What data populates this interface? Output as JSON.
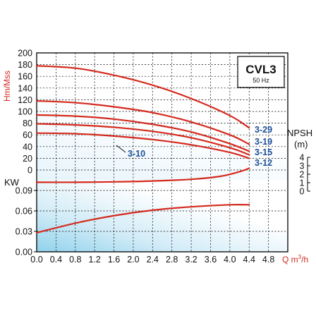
{
  "chart_data": {
    "type": "line",
    "model": "CVL3",
    "frequency": "50 Hz",
    "x_axis": {
      "label": "Q m³/h",
      "label_main": "Q m",
      "label_sup": "3",
      "label_tail": "/h",
      "range": [
        0,
        5.2
      ],
      "ticks": [
        "0.0",
        "0.4",
        "0.8",
        "1.2",
        "1.6",
        "2.0",
        "2.4",
        "2.8",
        "3.2",
        "3.6",
        "4.0",
        "4.4",
        "4.8"
      ]
    },
    "head_axis": {
      "label": "Hm/Mss",
      "range": [
        0,
        200
      ],
      "ticks": [
        "200",
        "180",
        "160",
        "140",
        "120",
        "100",
        "80",
        "60",
        "40",
        "20",
        "0"
      ]
    },
    "power_axis": {
      "label": "KW",
      "range": [
        0,
        0.09
      ],
      "ticks": [
        "0.09",
        "0.06",
        "0.03",
        "0.00"
      ]
    },
    "npsh_axis": {
      "label": "NPSH",
      "unit": "(m)",
      "range": [
        0,
        4
      ],
      "ticks": [
        "4",
        "3",
        "2",
        "1",
        "0"
      ]
    },
    "head_series": [
      {
        "name": "3-29",
        "x": [
          0,
          0.8,
          1.6,
          2.4,
          3.2,
          4.0,
          4.4
        ],
        "y": [
          178,
          174,
          162,
          145,
          122,
          93,
          72
        ]
      },
      {
        "name": "3-19",
        "x": [
          0,
          0.8,
          1.6,
          2.4,
          3.2,
          4.0,
          4.4
        ],
        "y": [
          118,
          115,
          108,
          98,
          82,
          60,
          44
        ]
      },
      {
        "name": "3-15",
        "x": [
          0,
          0.8,
          1.6,
          2.4,
          3.2,
          4.0,
          4.4
        ],
        "y": [
          94,
          92,
          87,
          78,
          65,
          45,
          32
        ]
      },
      {
        "name": "3-12",
        "x": [
          0,
          0.8,
          1.6,
          2.4,
          3.2,
          4.0,
          4.4
        ],
        "y": [
          79,
          77,
          73,
          66,
          55,
          38,
          26
        ]
      },
      {
        "name": "3-10",
        "x": [
          0,
          0.8,
          1.6,
          2.4,
          3.2,
          4.0,
          4.4
        ],
        "y": [
          63,
          62,
          58,
          52,
          43,
          30,
          20
        ]
      }
    ],
    "npsh_series": {
      "x": [
        0,
        0.8,
        1.6,
        2.4,
        3.2,
        3.8,
        4.2,
        4.4
      ],
      "y": [
        1.05,
        1.05,
        1.1,
        1.2,
        1.4,
        1.75,
        2.3,
        2.7
      ]
    },
    "power_series": {
      "x": [
        0,
        0.8,
        1.6,
        2.4,
        3.2,
        4.0,
        4.4
      ],
      "y": [
        0.028,
        0.042,
        0.053,
        0.061,
        0.066,
        0.069,
        0.069
      ]
    },
    "grid": true
  }
}
